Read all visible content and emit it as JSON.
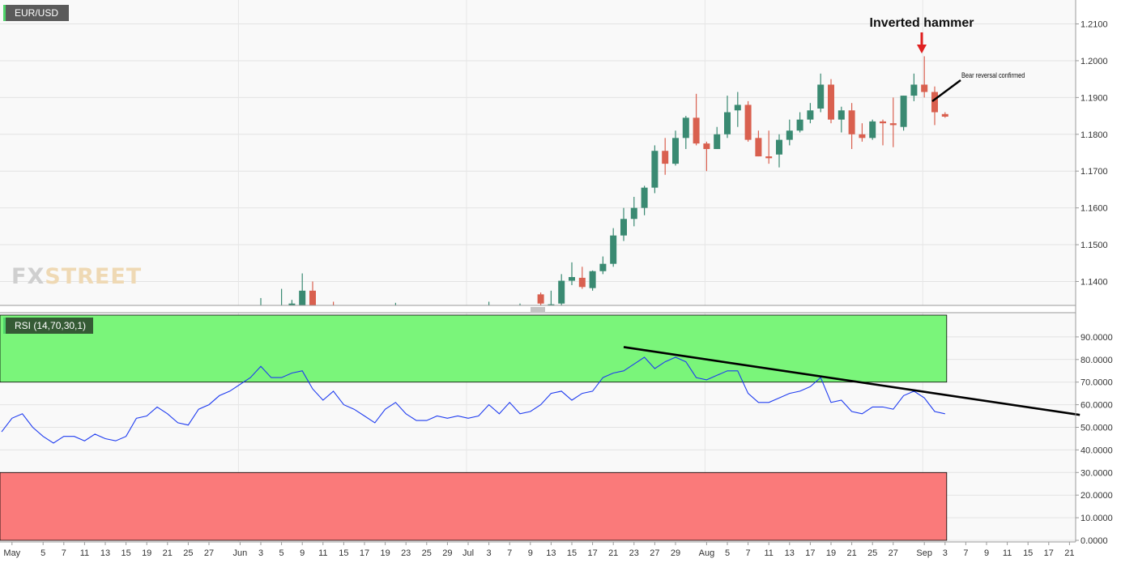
{
  "price_panel": {
    "symbol": "EUR/USD",
    "watermark_a": "FX",
    "watermark_b": "STREET",
    "annotation_title": "Inverted hammer",
    "annotation_note": "Bear reversal confirmed"
  },
  "rsi_panel": {
    "label": "RSI (14,70,30,1)"
  },
  "colors": {
    "bull": "#3a8a72",
    "bear": "#d9604f",
    "rsi_line": "#1f3cf0",
    "overbought_zone": "#7af57a",
    "oversold_zone": "#fa7a7a",
    "arrow": "#e02020",
    "trendline": "#000000"
  },
  "chart_data": [
    {
      "type": "candlestick",
      "title": "EUR/USD",
      "ylim": [
        1.1335,
        1.2165
      ],
      "yticks": [
        "1.2100",
        "1.2000",
        "1.1900",
        "1.1800",
        "1.1700",
        "1.1600",
        "1.1500",
        "1.1400"
      ],
      "candles": [
        {
          "date": "Jun 3",
          "o": 1.133,
          "h": 1.1355,
          "l": 1.132,
          "c": 1.1335
        },
        {
          "date": "Jun 5",
          "o": 1.1335,
          "h": 1.138,
          "l": 1.132,
          "c": 1.1335
        },
        {
          "date": "Jun 7",
          "o": 1.132,
          "h": 1.134,
          "l": 1.13,
          "c": 1.1335
        },
        {
          "date": "Jun 8",
          "o": 1.132,
          "h": 1.135,
          "l": 1.13,
          "c": 1.134
        },
        {
          "date": "Jun 9",
          "o": 1.133,
          "h": 1.1422,
          "l": 1.132,
          "c": 1.1375
        },
        {
          "date": "Jun 10",
          "o": 1.1375,
          "h": 1.14,
          "l": 1.133,
          "c": 1.1335
        },
        {
          "date": "Jun 12",
          "o": 1.1335,
          "h": 1.1345,
          "l": 1.132,
          "c": 1.133
        },
        {
          "date": "Jun 22",
          "o": 1.133,
          "h": 1.1342,
          "l": 1.132,
          "c": 1.1335
        },
        {
          "date": "Jul 3",
          "o": 1.133,
          "h": 1.1345,
          "l": 1.132,
          "c": 1.1336
        },
        {
          "date": "Jul 8",
          "o": 1.133,
          "h": 1.134,
          "l": 1.132,
          "c": 1.1335
        },
        {
          "date": "Jul 10",
          "o": 1.1365,
          "h": 1.137,
          "l": 1.133,
          "c": 1.134
        },
        {
          "date": "Jul 13",
          "o": 1.133,
          "h": 1.1375,
          "l": 1.132,
          "c": 1.1338
        },
        {
          "date": "Jul 14",
          "o": 1.134,
          "h": 1.142,
          "l": 1.133,
          "c": 1.1402
        },
        {
          "date": "Jul 15",
          "o": 1.1402,
          "h": 1.1452,
          "l": 1.139,
          "c": 1.1412
        },
        {
          "date": "Jul 16",
          "o": 1.141,
          "h": 1.144,
          "l": 1.138,
          "c": 1.1385
        },
        {
          "date": "Jul 17",
          "o": 1.1382,
          "h": 1.143,
          "l": 1.1375,
          "c": 1.1428
        },
        {
          "date": "Jul 20",
          "o": 1.1428,
          "h": 1.1468,
          "l": 1.142,
          "c": 1.1448
        },
        {
          "date": "Jul 21",
          "o": 1.1448,
          "h": 1.1545,
          "l": 1.144,
          "c": 1.1525
        },
        {
          "date": "Jul 22",
          "o": 1.1525,
          "h": 1.16,
          "l": 1.151,
          "c": 1.157
        },
        {
          "date": "Jul 23",
          "o": 1.157,
          "h": 1.163,
          "l": 1.155,
          "c": 1.16
        },
        {
          "date": "Jul 24",
          "o": 1.16,
          "h": 1.166,
          "l": 1.158,
          "c": 1.1655
        },
        {
          "date": "Jul 27",
          "o": 1.1655,
          "h": 1.177,
          "l": 1.164,
          "c": 1.1755
        },
        {
          "date": "Jul 28",
          "o": 1.1755,
          "h": 1.179,
          "l": 1.169,
          "c": 1.172
        },
        {
          "date": "Jul 29",
          "o": 1.172,
          "h": 1.181,
          "l": 1.1715,
          "c": 1.179
        },
        {
          "date": "Jul 30",
          "o": 1.179,
          "h": 1.185,
          "l": 1.176,
          "c": 1.1845
        },
        {
          "date": "Jul 31",
          "o": 1.1845,
          "h": 1.191,
          "l": 1.177,
          "c": 1.1775
        },
        {
          "date": "Aug 3",
          "o": 1.1775,
          "h": 1.178,
          "l": 1.17,
          "c": 1.176
        },
        {
          "date": "Aug 4",
          "o": 1.176,
          "h": 1.182,
          "l": 1.176,
          "c": 1.18
        },
        {
          "date": "Aug 5",
          "o": 1.18,
          "h": 1.1905,
          "l": 1.179,
          "c": 1.186
        },
        {
          "date": "Aug 6",
          "o": 1.1865,
          "h": 1.1915,
          "l": 1.182,
          "c": 1.188
        },
        {
          "date": "Aug 7",
          "o": 1.188,
          "h": 1.189,
          "l": 1.178,
          "c": 1.1785
        },
        {
          "date": "Aug 10",
          "o": 1.179,
          "h": 1.181,
          "l": 1.174,
          "c": 1.174
        },
        {
          "date": "Aug 11",
          "o": 1.174,
          "h": 1.181,
          "l": 1.172,
          "c": 1.1735
        },
        {
          "date": "Aug 12",
          "o": 1.1745,
          "h": 1.18,
          "l": 1.171,
          "c": 1.1785
        },
        {
          "date": "Aug 13",
          "o": 1.1785,
          "h": 1.184,
          "l": 1.177,
          "c": 1.181
        },
        {
          "date": "Aug 14",
          "o": 1.181,
          "h": 1.186,
          "l": 1.1805,
          "c": 1.184
        },
        {
          "date": "Aug 17",
          "o": 1.184,
          "h": 1.1885,
          "l": 1.183,
          "c": 1.1865
        },
        {
          "date": "Aug 18",
          "o": 1.187,
          "h": 1.1965,
          "l": 1.186,
          "c": 1.1935
        },
        {
          "date": "Aug 19",
          "o": 1.1935,
          "h": 1.195,
          "l": 1.183,
          "c": 1.184
        },
        {
          "date": "Aug 20",
          "o": 1.184,
          "h": 1.1875,
          "l": 1.1805,
          "c": 1.1865
        },
        {
          "date": "Aug 21",
          "o": 1.1865,
          "h": 1.1885,
          "l": 1.176,
          "c": 1.18
        },
        {
          "date": "Aug 24",
          "o": 1.18,
          "h": 1.183,
          "l": 1.178,
          "c": 1.179
        },
        {
          "date": "Aug 25",
          "o": 1.179,
          "h": 1.184,
          "l": 1.1785,
          "c": 1.1835
        },
        {
          "date": "Aug 26",
          "o": 1.1835,
          "h": 1.184,
          "l": 1.177,
          "c": 1.183
        },
        {
          "date": "Aug 27",
          "o": 1.183,
          "h": 1.19,
          "l": 1.1765,
          "c": 1.1825
        },
        {
          "date": "Aug 28",
          "o": 1.182,
          "h": 1.1905,
          "l": 1.181,
          "c": 1.1905
        },
        {
          "date": "Aug 31",
          "o": 1.1905,
          "h": 1.1965,
          "l": 1.189,
          "c": 1.1935
        },
        {
          "date": "Sep 1",
          "o": 1.1935,
          "h": 1.2012,
          "l": 1.19,
          "c": 1.1915
        },
        {
          "date": "Sep 2",
          "o": 1.1915,
          "h": 1.193,
          "l": 1.1825,
          "c": 1.186
        },
        {
          "date": "Sep 3",
          "o": 1.1855,
          "h": 1.186,
          "l": 1.1845,
          "c": 1.1848
        }
      ]
    },
    {
      "type": "line",
      "title": "RSI (14,70,30,1)",
      "ylim": [
        0,
        100
      ],
      "yticks": [
        "90.0000",
        "80.0000",
        "70.0000",
        "60.0000",
        "50.0000",
        "40.0000",
        "30.0000",
        "20.0000",
        "10.0000",
        "0.0000"
      ],
      "overbought": 70,
      "oversold": 30,
      "x_ticks": [
        {
          "date": "Apr 30",
          "label": "May"
        },
        {
          "date": "May 5",
          "label": "5"
        },
        {
          "date": "May 7",
          "label": "7"
        },
        {
          "date": "May 11",
          "label": "11"
        },
        {
          "date": "May 13",
          "label": "13"
        },
        {
          "date": "May 15",
          "label": "15"
        },
        {
          "date": "May 19",
          "label": "19"
        },
        {
          "date": "May 21",
          "label": "21"
        },
        {
          "date": "May 25",
          "label": "25"
        },
        {
          "date": "May 27",
          "label": "27"
        },
        {
          "date": "Jun 1",
          "label": "Jun"
        },
        {
          "date": "Jun 3",
          "label": "3"
        },
        {
          "date": "Jun 5",
          "label": "5"
        },
        {
          "date": "Jun 9",
          "label": "9"
        },
        {
          "date": "Jun 11",
          "label": "11"
        },
        {
          "date": "Jun 15",
          "label": "15"
        },
        {
          "date": "Jun 17",
          "label": "17"
        },
        {
          "date": "Jun 19",
          "label": "19"
        },
        {
          "date": "Jun 23",
          "label": "23"
        },
        {
          "date": "Jun 25",
          "label": "25"
        },
        {
          "date": "Jun 29",
          "label": "29"
        },
        {
          "date": "Jul 1",
          "label": "Jul"
        },
        {
          "date": "Jul 3",
          "label": "3"
        },
        {
          "date": "Jul 7",
          "label": "7"
        },
        {
          "date": "Jul 9",
          "label": "9"
        },
        {
          "date": "Jul 13",
          "label": "13"
        },
        {
          "date": "Jul 15",
          "label": "15"
        },
        {
          "date": "Jul 17",
          "label": "17"
        },
        {
          "date": "Jul 21",
          "label": "21"
        },
        {
          "date": "Jul 23",
          "label": "23"
        },
        {
          "date": "Jul 27",
          "label": "27"
        },
        {
          "date": "Jul 29",
          "label": "29"
        },
        {
          "date": "Aug 3",
          "label": "Aug"
        },
        {
          "date": "Aug 5",
          "label": "5"
        },
        {
          "date": "Aug 7",
          "label": "7"
        },
        {
          "date": "Aug 11",
          "label": "11"
        },
        {
          "date": "Aug 13",
          "label": "13"
        },
        {
          "date": "Aug 17",
          "label": "17"
        },
        {
          "date": "Aug 19",
          "label": "19"
        },
        {
          "date": "Aug 21",
          "label": "21"
        },
        {
          "date": "Aug 25",
          "label": "25"
        },
        {
          "date": "Aug 27",
          "label": "27"
        },
        {
          "date": "Sep 1",
          "label": "Sep"
        },
        {
          "date": "Sep 3",
          "label": "3"
        },
        {
          "date": "Sep 7",
          "label": "7"
        },
        {
          "date": "Sep 9",
          "label": "9"
        },
        {
          "date": "Sep 11",
          "label": "11"
        },
        {
          "date": "Sep 15",
          "label": "15"
        },
        {
          "date": "Sep 17",
          "label": "17"
        },
        {
          "date": "Sep 21",
          "label": "21"
        }
      ],
      "series": [
        {
          "values": [
            {
              "date": "Apr 29",
              "v": 48
            },
            {
              "date": "Apr 30",
              "v": 54
            },
            {
              "date": "May 1",
              "v": 56
            },
            {
              "date": "May 4",
              "v": 50
            },
            {
              "date": "May 5",
              "v": 46
            },
            {
              "date": "May 6",
              "v": 43
            },
            {
              "date": "May 7",
              "v": 46
            },
            {
              "date": "May 8",
              "v": 46
            },
            {
              "date": "May 11",
              "v": 44
            },
            {
              "date": "May 12",
              "v": 47
            },
            {
              "date": "May 13",
              "v": 45
            },
            {
              "date": "May 14",
              "v": 44
            },
            {
              "date": "May 15",
              "v": 46
            },
            {
              "date": "May 18",
              "v": 54
            },
            {
              "date": "May 19",
              "v": 55
            },
            {
              "date": "May 20",
              "v": 59
            },
            {
              "date": "May 21",
              "v": 56
            },
            {
              "date": "May 22",
              "v": 52
            },
            {
              "date": "May 25",
              "v": 51
            },
            {
              "date": "May 26",
              "v": 58
            },
            {
              "date": "May 27",
              "v": 60
            },
            {
              "date": "May 28",
              "v": 64
            },
            {
              "date": "May 29",
              "v": 66
            },
            {
              "date": "Jun 1",
              "v": 69
            },
            {
              "date": "Jun 2",
              "v": 72
            },
            {
              "date": "Jun 3",
              "v": 77
            },
            {
              "date": "Jun 4",
              "v": 72
            },
            {
              "date": "Jun 5",
              "v": 72
            },
            {
              "date": "Jun 8",
              "v": 74
            },
            {
              "date": "Jun 9",
              "v": 75
            },
            {
              "date": "Jun 10",
              "v": 67
            },
            {
              "date": "Jun 11",
              "v": 62
            },
            {
              "date": "Jun 12",
              "v": 66
            },
            {
              "date": "Jun 15",
              "v": 60
            },
            {
              "date": "Jun 16",
              "v": 58
            },
            {
              "date": "Jun 17",
              "v": 55
            },
            {
              "date": "Jun 18",
              "v": 52
            },
            {
              "date": "Jun 19",
              "v": 58
            },
            {
              "date": "Jun 22",
              "v": 61
            },
            {
              "date": "Jun 23",
              "v": 56
            },
            {
              "date": "Jun 24",
              "v": 53
            },
            {
              "date": "Jun 25",
              "v": 53
            },
            {
              "date": "Jun 26",
              "v": 55
            },
            {
              "date": "Jun 29",
              "v": 54
            },
            {
              "date": "Jun 30",
              "v": 55
            },
            {
              "date": "Jul 1",
              "v": 54
            },
            {
              "date": "Jul 2",
              "v": 55
            },
            {
              "date": "Jul 3",
              "v": 60
            },
            {
              "date": "Jul 6",
              "v": 56
            },
            {
              "date": "Jul 7",
              "v": 61
            },
            {
              "date": "Jul 8",
              "v": 56
            },
            {
              "date": "Jul 9",
              "v": 57
            },
            {
              "date": "Jul 10",
              "v": 60
            },
            {
              "date": "Jul 13",
              "v": 65
            },
            {
              "date": "Jul 14",
              "v": 66
            },
            {
              "date": "Jul 15",
              "v": 62
            },
            {
              "date": "Jul 16",
              "v": 65
            },
            {
              "date": "Jul 17",
              "v": 66
            },
            {
              "date": "Jul 20",
              "v": 72
            },
            {
              "date": "Jul 21",
              "v": 74
            },
            {
              "date": "Jul 22",
              "v": 75
            },
            {
              "date": "Jul 23",
              "v": 78
            },
            {
              "date": "Jul 24",
              "v": 81
            },
            {
              "date": "Jul 27",
              "v": 76
            },
            {
              "date": "Jul 28",
              "v": 79
            },
            {
              "date": "Jul 29",
              "v": 81
            },
            {
              "date": "Jul 30",
              "v": 79
            },
            {
              "date": "Jul 31",
              "v": 72
            },
            {
              "date": "Aug 3",
              "v": 71
            },
            {
              "date": "Aug 4",
              "v": 73
            },
            {
              "date": "Aug 5",
              "v": 75
            },
            {
              "date": "Aug 6",
              "v": 75
            },
            {
              "date": "Aug 7",
              "v": 65
            },
            {
              "date": "Aug 10",
              "v": 61
            },
            {
              "date": "Aug 11",
              "v": 61
            },
            {
              "date": "Aug 12",
              "v": 63
            },
            {
              "date": "Aug 13",
              "v": 65
            },
            {
              "date": "Aug 14",
              "v": 66
            },
            {
              "date": "Aug 17",
              "v": 68
            },
            {
              "date": "Aug 18",
              "v": 72
            },
            {
              "date": "Aug 19",
              "v": 61
            },
            {
              "date": "Aug 20",
              "v": 62
            },
            {
              "date": "Aug 21",
              "v": 57
            },
            {
              "date": "Aug 24",
              "v": 56
            },
            {
              "date": "Aug 25",
              "v": 59
            },
            {
              "date": "Aug 26",
              "v": 59
            },
            {
              "date": "Aug 27",
              "v": 58
            },
            {
              "date": "Aug 28",
              "v": 64
            },
            {
              "date": "Aug 31",
              "v": 66
            },
            {
              "date": "Sep 1",
              "v": 63
            },
            {
              "date": "Sep 2",
              "v": 57
            },
            {
              "date": "Sep 3",
              "v": 56
            }
          ]
        }
      ],
      "trendline": [
        {
          "date": "Jul 22",
          "v": 85.5
        },
        {
          "date": "Sep 22",
          "v": 55.5
        }
      ]
    }
  ]
}
